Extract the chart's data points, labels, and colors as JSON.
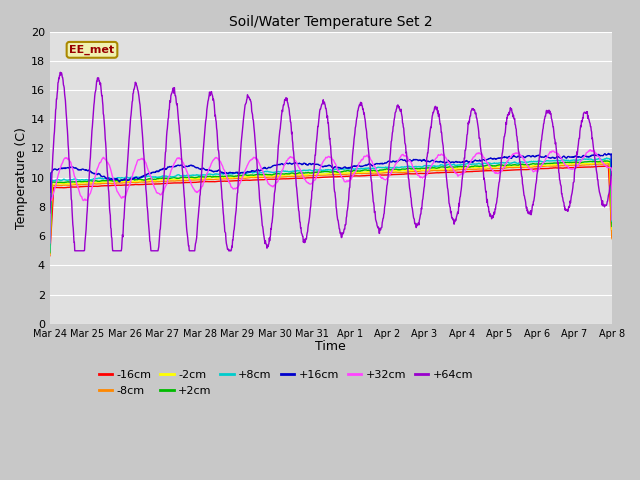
{
  "title": "Soil/Water Temperature Set 2",
  "xlabel": "Time",
  "ylabel": "Temperature (C)",
  "ylim": [
    0,
    20
  ],
  "yticks": [
    0,
    2,
    4,
    6,
    8,
    10,
    12,
    14,
    16,
    18,
    20
  ],
  "watermark": "EE_met",
  "legend_entries": [
    "-16cm",
    "-8cm",
    "-2cm",
    "+2cm",
    "+8cm",
    "+16cm",
    "+32cm",
    "+64cm"
  ],
  "line_colors": [
    "#ff0000",
    "#ff8800",
    "#ffff00",
    "#00bb00",
    "#00cccc",
    "#0000cc",
    "#ff44ff",
    "#9900cc"
  ],
  "x_tick_labels": [
    "Mar 24",
    "Mar 25",
    "Mar 26",
    "Mar 27",
    "Mar 28",
    "Mar 29",
    "Mar 30",
    "Mar 31",
    "Apr 1",
    "Apr 2",
    "Apr 3",
    "Apr 4",
    "Apr 5",
    "Apr 6",
    "Apr 7",
    "Apr 8"
  ],
  "fig_bg": "#c8c8c8",
  "plot_bg": "#e0e0e0",
  "grid_color": "#ffffff",
  "n_days": 15
}
